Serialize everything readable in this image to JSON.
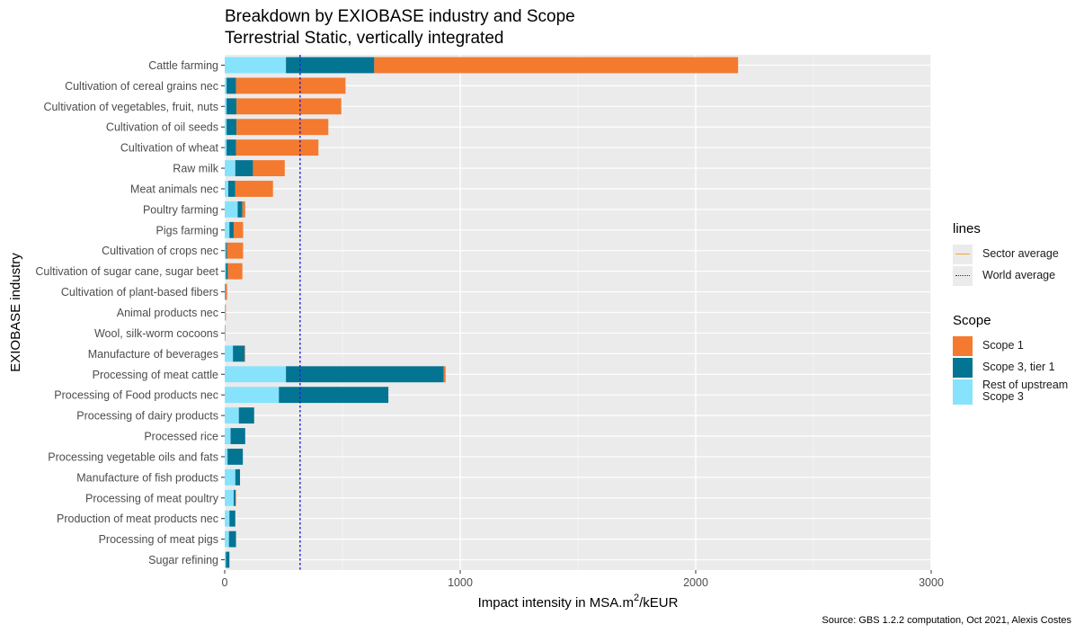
{
  "title_line1": "Breakdown by EXIOBASE industry and Scope",
  "title_line2": "Terrestrial Static, vertically integrated",
  "source_note": "Source: GBS 1.2.2 computation, Oct 2021, Alexis Costes",
  "legend_lines": {
    "title": "lines",
    "sector_average": "Sector average",
    "world_average": "World average"
  },
  "legend_scope": {
    "title": "Scope",
    "scope1": "Scope 1",
    "scope3_tier1": "Scope 3, tier 1",
    "rest_upstream_line1": "Rest of upstream",
    "rest_upstream_line2": "Scope 3"
  },
  "colors": {
    "scope1": "#f47a2f",
    "scope3_tier1": "#037593",
    "rest_upstream": "#87e3fb",
    "sector_average": "#f5a623",
    "world_average": "#1f1fd6",
    "panel": "#ebebeb"
  },
  "chart_data": {
    "type": "bar",
    "orientation": "horizontal",
    "stacked": true,
    "xlabel": "Impact intensity in MSA.m",
    "xlabel_sup": "2",
    "xlabel_suffix": "/kEUR",
    "ylabel": "EXIOBASE industry",
    "xlim": [
      0,
      3000
    ],
    "xticks": [
      0,
      1000,
      2000,
      3000
    ],
    "grid": true,
    "legend_position": "right",
    "world_average": 320,
    "categories": [
      "Cattle farming",
      "Cultivation of cereal grains nec",
      "Cultivation of vegetables, fruit, nuts",
      "Cultivation of oil seeds",
      "Cultivation of wheat",
      "Raw milk",
      "Meat animals nec",
      "Poultry farming",
      "Pigs farming",
      "Cultivation of crops nec",
      "Cultivation of sugar cane, sugar beet",
      "Cultivation of plant-based fibers",
      "Animal products nec",
      "Wool, silk-worm cocoons",
      "Manufacture of beverages",
      "Processing of meat cattle",
      "Processing of Food products nec",
      "Processing of dairy products",
      "Processed rice",
      "Processing vegetable oils and fats",
      "Manufacture of fish products",
      "Processing of meat poultry",
      "Production of meat products nec",
      "Processing of meat pigs",
      "Sugar refining"
    ],
    "series": [
      {
        "name": "Rest of upstream Scope 3",
        "values": [
          260,
          8,
          8,
          8,
          8,
          45,
          15,
          55,
          20,
          5,
          5,
          2,
          2,
          1,
          35,
          260,
          230,
          60,
          25,
          12,
          45,
          38,
          20,
          18,
          5
        ]
      },
      {
        "name": "Scope 3, tier 1",
        "values": [
          375,
          40,
          42,
          42,
          40,
          75,
          30,
          20,
          18,
          5,
          8,
          2,
          1,
          1,
          50,
          670,
          465,
          65,
          62,
          65,
          20,
          8,
          25,
          30,
          15
        ]
      },
      {
        "name": "Scope 1",
        "values": [
          1545,
          465,
          445,
          390,
          350,
          135,
          160,
          12,
          40,
          68,
          62,
          6,
          2,
          1,
          2,
          8,
          0,
          0,
          0,
          0,
          0,
          2,
          0,
          0,
          0
        ]
      }
    ]
  }
}
